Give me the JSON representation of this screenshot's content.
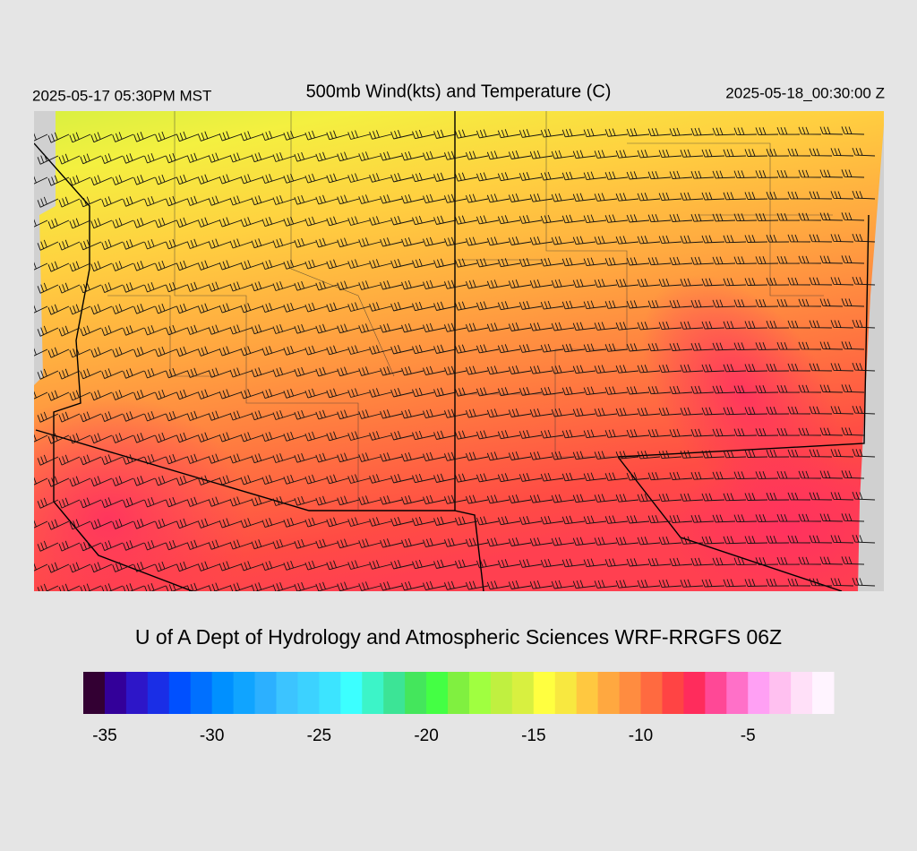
{
  "header": {
    "valid_local": "2025-05-17 05:30PM MST",
    "title": "500mb Wind(kts) and Temperature (C)",
    "valid_utc": "2025-05-18_00:30:00 Z"
  },
  "footer": {
    "credit": "U of A Dept of Hydrology and Atmospheric Sciences WRF-RRGFS 06Z"
  },
  "colorbar": {
    "range": [
      -36,
      -1
    ],
    "ticks": [
      -35,
      -30,
      -25,
      -20,
      -15,
      -10,
      -5
    ],
    "colors": [
      "#330033",
      "#330099",
      "#2d16c8",
      "#1a2ee6",
      "#0050ff",
      "#0070ff",
      "#0090ff",
      "#10a4ff",
      "#2cb0ff",
      "#3cc4ff",
      "#3cd2ff",
      "#3ce4ff",
      "#3cffff",
      "#3cf4c8",
      "#3ce496",
      "#44e65c",
      "#44ff44",
      "#80f040",
      "#a0ff40",
      "#c0f040",
      "#d8f040",
      "#ffff40",
      "#f8e840",
      "#ffc840",
      "#ffa840",
      "#ff8c40",
      "#ff6a40",
      "#ff4444",
      "#ff2c5c",
      "#ff4896",
      "#ff70c8",
      "#ffa0f4",
      "#ffc0f0",
      "#ffe0f8",
      "#fff4ff"
    ]
  }
}
